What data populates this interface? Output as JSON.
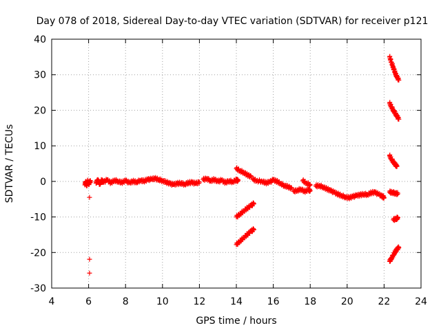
{
  "chart_data": {
    "type": "scatter",
    "title": "Day 078 of 2018, Sidereal Day-to-day VTEC variation (SDTVAR) for receiver p121",
    "xlabel": "GPS time / hours",
    "ylabel": "SDTVAR / TECUs",
    "xlim": [
      4,
      24
    ],
    "ylim": [
      -30,
      40
    ],
    "xticks": [
      4,
      6,
      8,
      10,
      12,
      14,
      16,
      18,
      20,
      22,
      24
    ],
    "yticks": [
      -30,
      -20,
      -10,
      0,
      10,
      20,
      30,
      40
    ],
    "xtick_labels": [
      "4",
      "6",
      "8",
      "10",
      "12",
      "14",
      "16",
      "18",
      "20",
      "22",
      "24"
    ],
    "ytick_labels": [
      "-30",
      "-20",
      "-10",
      "0",
      "10",
      "20",
      "30",
      "40"
    ],
    "grid": true,
    "marker": "+",
    "color": "#ff0000",
    "series": [
      {
        "name": "arc-main-1",
        "points": [
          [
            5.8,
            -1
          ],
          [
            5.85,
            0
          ],
          [
            5.9,
            -1.2
          ],
          [
            5.95,
            0.2
          ],
          [
            6.0,
            -0.8
          ],
          [
            6.05,
            -0.3
          ],
          [
            6.1,
            0.1
          ]
        ]
      },
      {
        "name": "outliers-6h",
        "points": [
          [
            6.05,
            -4.5
          ],
          [
            6.05,
            -21.9
          ],
          [
            6.05,
            -25.8
          ]
        ]
      },
      {
        "name": "arc-main-2",
        "points": [
          [
            6.4,
            -0.5
          ],
          [
            6.5,
            0.5
          ],
          [
            6.6,
            -0.8
          ],
          [
            6.7,
            0.3
          ],
          [
            6.8,
            -0.2
          ],
          [
            7.0,
            0.4
          ],
          [
            7.2,
            -0.4
          ],
          [
            7.4,
            0.3
          ],
          [
            7.6,
            0
          ],
          [
            7.8,
            -0.3
          ],
          [
            8.0,
            0.2
          ],
          [
            8.2,
            -0.4
          ],
          [
            8.4,
            0
          ],
          [
            8.6,
            -0.2
          ],
          [
            8.8,
            0.3
          ],
          [
            9.0,
            0.1
          ],
          [
            9.2,
            0.5
          ],
          [
            9.4,
            0.6
          ],
          [
            9.6,
            0.8
          ],
          [
            9.8,
            0.5
          ],
          [
            10.0,
            0.2
          ],
          [
            10.2,
            -0.2
          ],
          [
            10.4,
            -0.6
          ],
          [
            10.6,
            -0.9
          ],
          [
            10.8,
            -0.6
          ],
          [
            11.0,
            -0.5
          ],
          [
            11.2,
            -0.8
          ],
          [
            11.4,
            -0.4
          ],
          [
            11.6,
            -0.3
          ],
          [
            11.8,
            -0.6
          ],
          [
            12.0,
            -0.2
          ]
        ]
      },
      {
        "name": "arc-main-3",
        "points": [
          [
            12.2,
            0.5
          ],
          [
            12.4,
            0.8
          ],
          [
            12.6,
            0.2
          ],
          [
            12.8,
            0.5
          ],
          [
            13.0,
            0
          ],
          [
            13.2,
            0.3
          ],
          [
            13.4,
            -0.3
          ],
          [
            13.6,
            0.1
          ],
          [
            13.8,
            -0.1
          ],
          [
            14.0,
            0.4
          ],
          [
            14.1,
            0.2
          ]
        ]
      },
      {
        "name": "arc-high-14h",
        "points": [
          [
            14.0,
            3.6
          ],
          [
            14.2,
            3.0
          ],
          [
            14.4,
            2.5
          ],
          [
            14.6,
            1.8
          ],
          [
            14.8,
            1.3
          ]
        ]
      },
      {
        "name": "arc-low-14h-a",
        "points": [
          [
            14.0,
            -10
          ],
          [
            14.2,
            -9.2
          ],
          [
            14.4,
            -8.3
          ],
          [
            14.6,
            -7.5
          ],
          [
            14.8,
            -6.8
          ],
          [
            14.95,
            -6.2
          ]
        ]
      },
      {
        "name": "arc-low-14h-b",
        "points": [
          [
            14.0,
            -17.8
          ],
          [
            14.2,
            -16.8
          ],
          [
            14.4,
            -15.8
          ],
          [
            14.6,
            -14.9
          ],
          [
            14.8,
            -14
          ],
          [
            14.95,
            -13.5
          ]
        ]
      },
      {
        "name": "arc-main-4",
        "points": [
          [
            14.9,
            0.6
          ],
          [
            15.1,
            0.2
          ],
          [
            15.4,
            0
          ],
          [
            15.6,
            -0.4
          ],
          [
            15.8,
            -0.2
          ],
          [
            16.0,
            0.4
          ],
          [
            16.2,
            0
          ],
          [
            16.4,
            -0.6
          ],
          [
            16.6,
            -1.2
          ],
          [
            16.8,
            -1.5
          ],
          [
            17.0,
            -2
          ]
        ]
      },
      {
        "name": "arc-17h",
        "points": [
          [
            17.1,
            -2.8
          ],
          [
            17.3,
            -2.5
          ],
          [
            17.5,
            -2.2
          ],
          [
            17.7,
            -2.8
          ],
          [
            17.9,
            -2.4
          ],
          [
            18.0,
            -2.6
          ]
        ]
      },
      {
        "name": "arc-17.5h",
        "points": [
          [
            17.6,
            0.2
          ],
          [
            17.8,
            -0.5
          ],
          [
            18.0,
            -1
          ]
        ]
      },
      {
        "name": "arc-main-5",
        "points": [
          [
            18.3,
            -1.3
          ],
          [
            18.5,
            -1.2
          ],
          [
            18.7,
            -1.6
          ],
          [
            18.9,
            -2.1
          ],
          [
            19.1,
            -2.6
          ],
          [
            19.3,
            -3.1
          ],
          [
            19.5,
            -3.6
          ],
          [
            19.7,
            -4
          ],
          [
            19.9,
            -4.4
          ],
          [
            20.1,
            -4.6
          ],
          [
            20.3,
            -4.3
          ],
          [
            20.5,
            -4
          ],
          [
            20.7,
            -3.8
          ],
          [
            20.9,
            -3.6
          ],
          [
            21.1,
            -3.7
          ],
          [
            21.3,
            -3.2
          ],
          [
            21.5,
            -3.1
          ],
          [
            21.7,
            -3.6
          ],
          [
            21.9,
            -4.2
          ],
          [
            22.0,
            -4.5
          ]
        ]
      },
      {
        "name": "arc-22h-a",
        "points": [
          [
            22.3,
            35
          ],
          [
            22.4,
            33.5
          ],
          [
            22.5,
            32
          ],
          [
            22.6,
            30.5
          ],
          [
            22.7,
            29.3
          ],
          [
            22.8,
            28.5
          ]
        ]
      },
      {
        "name": "arc-22h-b",
        "points": [
          [
            22.3,
            22
          ],
          [
            22.4,
            21
          ],
          [
            22.5,
            20
          ],
          [
            22.6,
            19.2
          ],
          [
            22.7,
            18.3
          ],
          [
            22.8,
            17.5
          ]
        ]
      },
      {
        "name": "arc-22h-c",
        "points": [
          [
            22.3,
            7.2
          ],
          [
            22.4,
            6.3
          ],
          [
            22.5,
            5.5
          ],
          [
            22.6,
            4.8
          ],
          [
            22.7,
            4.2
          ]
        ]
      },
      {
        "name": "arc-22h-d",
        "points": [
          [
            22.3,
            -3
          ],
          [
            22.45,
            -3.1
          ],
          [
            22.6,
            -3.3
          ],
          [
            22.75,
            -3.5
          ]
        ]
      },
      {
        "name": "arc-22h-e",
        "points": [
          [
            22.5,
            -10.8
          ],
          [
            22.65,
            -10.5
          ],
          [
            22.75,
            -10.2
          ]
        ]
      },
      {
        "name": "arc-22h-f",
        "points": [
          [
            22.3,
            -22.5
          ],
          [
            22.4,
            -21.6
          ],
          [
            22.5,
            -20.7
          ],
          [
            22.6,
            -19.8
          ],
          [
            22.7,
            -19.1
          ],
          [
            22.8,
            -18.6
          ]
        ]
      }
    ]
  }
}
